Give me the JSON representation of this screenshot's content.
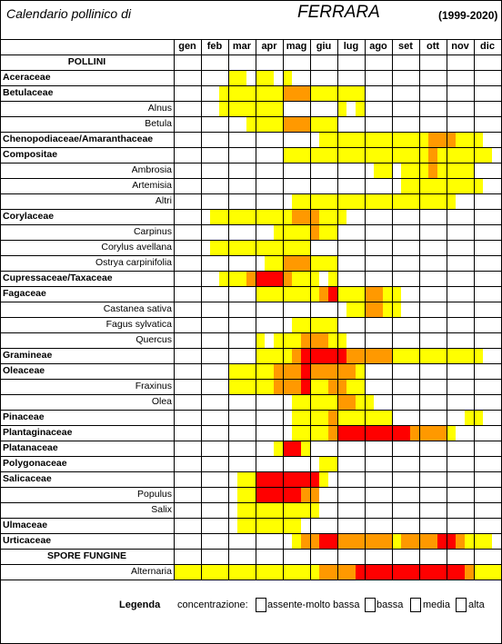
{
  "header": {
    "title": "Calendario pollinico di",
    "city": "FERRARA",
    "years": "(1999-2020)"
  },
  "months": [
    "gen",
    "feb",
    "mar",
    "apr",
    "mag",
    "giu",
    "lug",
    "ago",
    "set",
    "ott",
    "nov",
    "dic"
  ],
  "colors": {
    "0": "#ffffff",
    "1": "#ffff00",
    "2": "#ff9900",
    "3": "#ff0000"
  },
  "chart_data": {
    "type": "heatmap",
    "title": "Calendario pollinico di FERRARA (1999-2020)",
    "x_unit": "ten-day periods (decadi), 3 per month",
    "levels": {
      "0": "assente-molto bassa",
      "1": "bassa",
      "2": "media",
      "3": "alta"
    },
    "rows": [
      {
        "label": "POLLINI",
        "kind": "header"
      },
      {
        "label": "Aceraceae",
        "kind": "family",
        "values": "000000110110100000000000000000000000"
      },
      {
        "label": "Betulaceae",
        "kind": "family",
        "values": "000001111111222111111000000000000000"
      },
      {
        "label": "Alnus",
        "kind": "species",
        "values": "000001111111000000101000000000000000"
      },
      {
        "label": "Betula",
        "kind": "species",
        "values": "000000001111222111000000000000000000"
      },
      {
        "label": "Chenopodiaceae/Amaranthaceae",
        "kind": "family",
        "values": "000000000000000011111111111122211100"
      },
      {
        "label": "Compositae",
        "kind": "family",
        "values": "000000000000111111111111111121111110"
      },
      {
        "label": "Ambrosia",
        "kind": "species",
        "values": "000000000000000000000011011121111000"
      },
      {
        "label": "Artemisia",
        "kind": "species",
        "values": "000000000000000000000000011111111100"
      },
      {
        "label": "Altri",
        "kind": "species",
        "values": "000000000000011111111111111111100000"
      },
      {
        "label": "Corylaceae",
        "kind": "family",
        "values": "000011111111122211100000000000000000"
      },
      {
        "label": "Carpinus",
        "kind": "species",
        "values": "000000000001111211000000000000000000"
      },
      {
        "label": "Corylus avellana",
        "kind": "species",
        "values": "000011111111111000000000000000000000"
      },
      {
        "label": "Ostrya carpinifolia",
        "kind": "species",
        "values": "000000000011222111000000000000000000"
      },
      {
        "label": "Cupressaceae/Taxaceae",
        "kind": "family",
        "values": "000001112333211101000000000000000000"
      },
      {
        "label": "Fagaceae",
        "kind": "family",
        "values": "000000000111111123111221100000000000"
      },
      {
        "label": "Castanea sativa",
        "kind": "species",
        "values": "000000000000000000011221100000000000"
      },
      {
        "label": "Fagus sylvatica",
        "kind": "species",
        "values": "000000000000011111000000000000000000"
      },
      {
        "label": "Quercus",
        "kind": "species",
        "values": "000000000101112221100000000000000000"
      },
      {
        "label": "Gramineae",
        "kind": "family",
        "values": "000000000111123333322222111111111100"
      },
      {
        "label": "Oleaceae",
        "kind": "family",
        "values": "000000111112223222221000000000000000"
      },
      {
        "label": "Fraxinus",
        "kind": "species",
        "values": "000000111112223112211000000000000000"
      },
      {
        "label": "Olea",
        "kind": "species",
        "values": "000000000000011111221100000000000000"
      },
      {
        "label": "Pinaceae",
        "kind": "family",
        "values": "000000000000011112111111000000001100"
      },
      {
        "label": "Plantaginaceae",
        "kind": "family",
        "values": "000000000000011112333333332222100000"
      },
      {
        "label": "Platanaceae",
        "kind": "family",
        "values": "000000000001331000000000000000000000"
      },
      {
        "label": "Polygonaceae",
        "kind": "family",
        "values": "000000000000000011000000000000000000"
      },
      {
        "label": "Salicaceae",
        "kind": "family",
        "values": "000000011333333310000000000000000000"
      },
      {
        "label": "Populus",
        "kind": "species",
        "values": "000000011333332200000000000000000000"
      },
      {
        "label": "Salix",
        "kind": "species",
        "values": "000000011111111100000000000000000000"
      },
      {
        "label": "Ulmaceae",
        "kind": "family",
        "values": "000000011111110000000000000000000000"
      },
      {
        "label": "Urticaceae",
        "kind": "family",
        "values": "000000000000012233222222122223321110"
      },
      {
        "label": "SPORE FUNGINE",
        "kind": "header"
      },
      {
        "label": "Alternaria",
        "kind": "species",
        "values": "111111111111111122223333333333332111"
      }
    ]
  },
  "legend": {
    "title": "Legenda",
    "prefix": "concentrazione:",
    "items": [
      {
        "label": "assente-molto bassa",
        "level": "0"
      },
      {
        "label": "bassa",
        "level": "1"
      },
      {
        "label": "media",
        "level": "2"
      },
      {
        "label": "alta",
        "level": "3"
      }
    ]
  }
}
